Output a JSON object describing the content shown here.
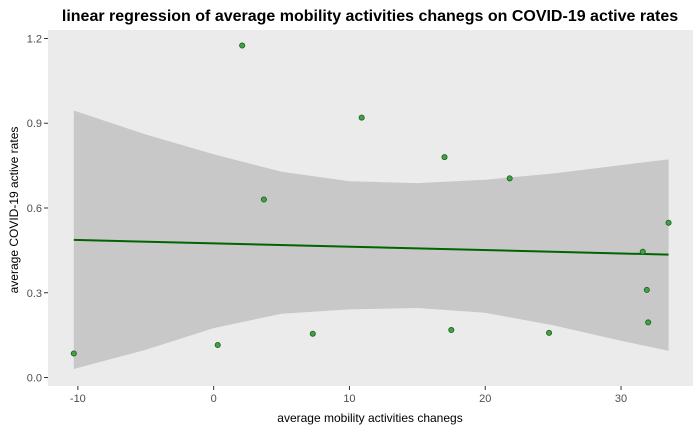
{
  "chart_data": {
    "type": "scatter",
    "title": "linear regression of average mobility activities chanegs on COVID-19 active rates",
    "xlabel": "average mobility activities chanegs",
    "ylabel": "average COVID-19 active rates",
    "xlim": [
      -12.2,
      35.3
    ],
    "ylim": [
      -0.03,
      1.23
    ],
    "x_ticks": [
      -10,
      0,
      10,
      20,
      30
    ],
    "x_tick_labels": [
      "-10",
      "0",
      "10",
      "20",
      "30"
    ],
    "y_ticks": [
      0.0,
      0.3,
      0.6,
      0.9,
      1.2
    ],
    "y_tick_labels": [
      "0.0",
      "0.3",
      "0.6",
      "0.9",
      "1.2"
    ],
    "grid": false,
    "points": [
      {
        "x": -10.3,
        "y": 0.085
      },
      {
        "x": 0.3,
        "y": 0.115
      },
      {
        "x": 2.1,
        "y": 1.175
      },
      {
        "x": 3.7,
        "y": 0.63
      },
      {
        "x": 7.3,
        "y": 0.155
      },
      {
        "x": 10.9,
        "y": 0.92
      },
      {
        "x": 17.0,
        "y": 0.78
      },
      {
        "x": 17.5,
        "y": 0.168
      },
      {
        "x": 21.8,
        "y": 0.705
      },
      {
        "x": 24.7,
        "y": 0.158
      },
      {
        "x": 31.6,
        "y": 0.445
      },
      {
        "x": 31.9,
        "y": 0.31
      },
      {
        "x": 32.0,
        "y": 0.195
      },
      {
        "x": 33.5,
        "y": 0.548
      }
    ],
    "regression_line": {
      "x": [
        -10.3,
        33.5
      ],
      "y": [
        0.487,
        0.435
      ]
    },
    "confidence_band": {
      "x": [
        -10.3,
        -5,
        0,
        5,
        10,
        15,
        20,
        25,
        30,
        33.5
      ],
      "upper": [
        0.945,
        0.86,
        0.79,
        0.728,
        0.695,
        0.688,
        0.7,
        0.722,
        0.752,
        0.772
      ],
      "lower": [
        0.03,
        0.098,
        0.175,
        0.226,
        0.241,
        0.246,
        0.229,
        0.185,
        0.13,
        0.095
      ]
    },
    "colors": {
      "panel": "#ebebeb",
      "band": "#c8c8c8",
      "line": "#006400",
      "point_fill": "#43a047",
      "point_stroke": "#1b5e20",
      "tick": "#333333",
      "tick_text": "#4d4d4d"
    }
  }
}
